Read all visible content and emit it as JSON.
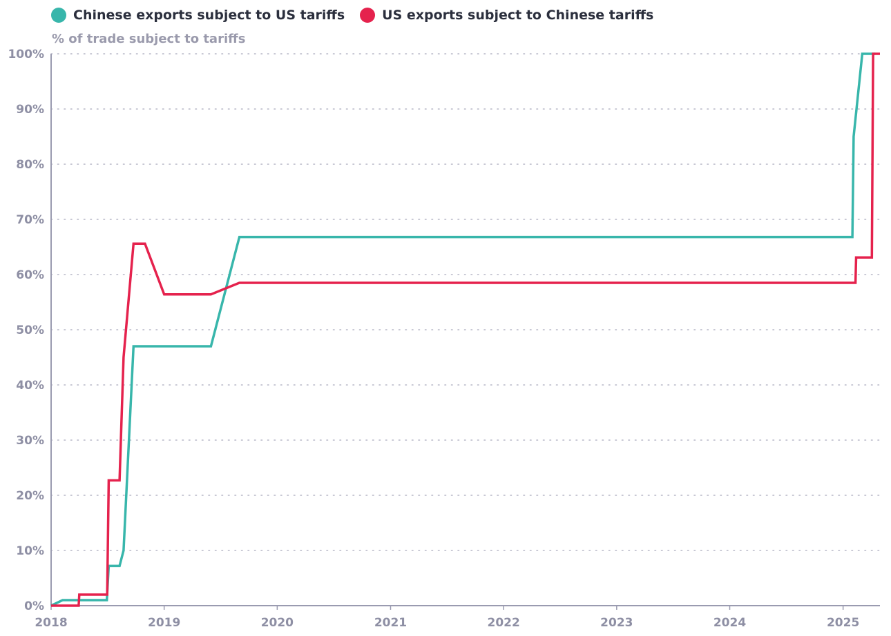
{
  "legend": {
    "series_1_label": "Chinese exports subject to US tariffs",
    "series_2_label": "US exports subject to Chinese tariffs"
  },
  "colors": {
    "series_1": "#38b6ab",
    "series_2": "#e5224d",
    "grid": "#b5b6c6",
    "axis": "#9a9bb0",
    "tick_text": "#8e8fa4"
  },
  "chart_data": {
    "type": "line",
    "ylabel": "% of trade subject to tariffs",
    "xlabel": "",
    "x_ticks": [
      "2018",
      "2019",
      "2020",
      "2021",
      "2022",
      "2023",
      "2024",
      "2025"
    ],
    "y_ticks": [
      "0%",
      "10%",
      "20%",
      "30%",
      "40%",
      "50%",
      "60%",
      "70%",
      "80%",
      "90%",
      "100%"
    ],
    "ylim": [
      0,
      100
    ],
    "xlim": [
      "2018-01-01",
      "2025-04-30"
    ],
    "grid": "horizontal dotted",
    "legend_position": "top-left",
    "series": [
      {
        "name": "Chinese exports subject to US tariffs",
        "points": [
          [
            "2018-01-01",
            0
          ],
          [
            "2018-02-07",
            1
          ],
          [
            "2018-06-30",
            1
          ],
          [
            "2018-07-06",
            7.2
          ],
          [
            "2018-08-10",
            7.2
          ],
          [
            "2018-08-23",
            10
          ],
          [
            "2018-09-24",
            47
          ],
          [
            "2019-06-01",
            47
          ],
          [
            "2019-09-01",
            66.8
          ],
          [
            "2025-01-31",
            66.8
          ],
          [
            "2025-02-04",
            85
          ],
          [
            "2025-03-04",
            100
          ],
          [
            "2025-04-15",
            100
          ]
        ]
      },
      {
        "name": "US exports subject to Chinese tariffs",
        "points": [
          [
            "2018-01-01",
            0
          ],
          [
            "2018-03-31",
            0
          ],
          [
            "2018-04-02",
            2
          ],
          [
            "2018-07-01",
            2
          ],
          [
            "2018-07-06",
            22.7
          ],
          [
            "2018-08-10",
            22.7
          ],
          [
            "2018-08-23",
            45
          ],
          [
            "2018-09-24",
            65.6
          ],
          [
            "2018-10-31",
            65.6
          ],
          [
            "2019-01-01",
            56.4
          ],
          [
            "2019-06-01",
            56.4
          ],
          [
            "2019-09-01",
            58.5
          ],
          [
            "2025-02-10",
            58.5
          ],
          [
            "2025-02-12",
            63.1
          ],
          [
            "2025-04-04",
            63.1
          ],
          [
            "2025-04-08",
            100
          ],
          [
            "2025-04-30",
            100
          ]
        ]
      }
    ]
  }
}
